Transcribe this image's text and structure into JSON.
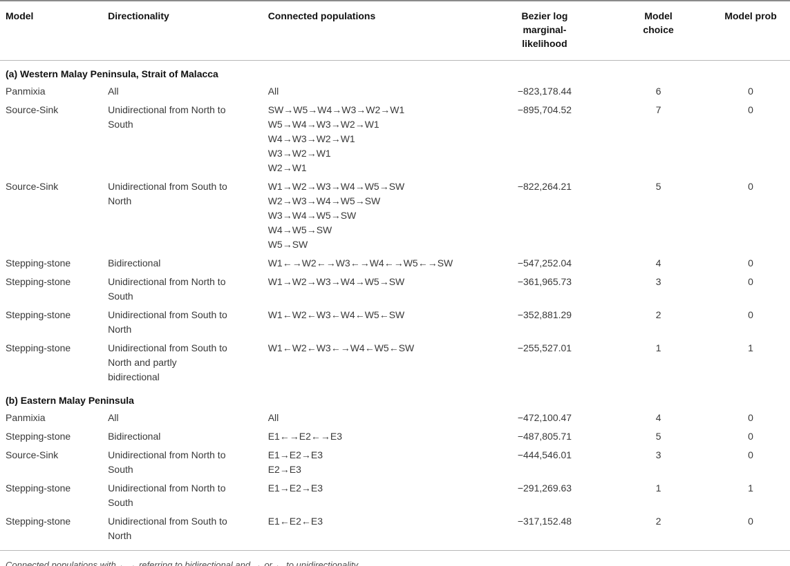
{
  "table": {
    "columns": [
      "Model",
      "Directionality",
      "Connected populations",
      "Bezier log marginal-likelihood",
      "Model choice",
      "Model prob"
    ],
    "sections": [
      {
        "title": "(a) Western Malay Peninsula, Strait of Malacca",
        "rows": [
          {
            "model": "Panmixia",
            "directionality": "All",
            "populations": [
              "All"
            ],
            "likelihood": "−823,178.44",
            "choice": "6",
            "prob": "0"
          },
          {
            "model": "Source-Sink",
            "directionality": "Unidirectional from North to South",
            "populations": [
              "SW→W5→W4→W3→W2→W1",
              "W5→W4→W3→W2→W1",
              "W4→W3→W2→W1",
              "W3→W2→W1",
              "W2→W1"
            ],
            "likelihood": "−895,704.52",
            "choice": "7",
            "prob": "0"
          },
          {
            "model": "Source-Sink",
            "directionality": "Unidirectional from South to North",
            "populations": [
              "W1→W2→W3→W4→W5→SW",
              "W2→W3→W4→W5→SW",
              "W3→W4→W5→SW",
              "W4→W5→SW",
              "W5→SW"
            ],
            "likelihood": "−822,264.21",
            "choice": "5",
            "prob": "0"
          },
          {
            "model": "Stepping-stone",
            "directionality": "Bidirectional",
            "populations": [
              "W1←→W2←→W3←→W4←→W5←→SW"
            ],
            "likelihood": "−547,252.04",
            "choice": "4",
            "prob": "0"
          },
          {
            "model": "Stepping-stone",
            "directionality": "Unidirectional from North to South",
            "populations": [
              "W1→W2→W3→W4→W5→SW"
            ],
            "likelihood": "−361,965.73",
            "choice": "3",
            "prob": "0"
          },
          {
            "model": "Stepping-stone",
            "directionality": "Unidirectional from South to North",
            "populations": [
              "W1←W2←W3←W4←W5←SW"
            ],
            "likelihood": "−352,881.29",
            "choice": "2",
            "prob": "0"
          },
          {
            "model": "Stepping-stone",
            "directionality": "Unidirectional from South to North and partly bidirectional",
            "populations": [
              "W1←W2←W3←→W4←W5←SW"
            ],
            "likelihood": "−255,527.01",
            "choice": "1",
            "prob": "1"
          }
        ]
      },
      {
        "title": "(b) Eastern Malay Peninsula",
        "rows": [
          {
            "model": "Panmixia",
            "directionality": "All",
            "populations": [
              "All"
            ],
            "likelihood": "−472,100.47",
            "choice": "4",
            "prob": "0"
          },
          {
            "model": "Stepping-stone",
            "directionality": "Bidirectional",
            "populations": [
              "E1←→E2←→E3"
            ],
            "likelihood": "−487,805.71",
            "choice": "5",
            "prob": "0"
          },
          {
            "model": "Source-Sink",
            "directionality": "Unidirectional from North to South",
            "populations": [
              "E1→E2→E3",
              "E2→E3"
            ],
            "likelihood": "−444,546.01",
            "choice": "3",
            "prob": "0"
          },
          {
            "model": "Stepping-stone",
            "directionality": "Unidirectional from North to South",
            "populations": [
              "E1→E2→E3"
            ],
            "likelihood": "−291,269.63",
            "choice": "1",
            "prob": "1"
          },
          {
            "model": "Stepping-stone",
            "directionality": "Unidirectional from South to North",
            "populations": [
              "E1←E2←E3"
            ],
            "likelihood": "−317,152.48",
            "choice": "2",
            "prob": "0"
          }
        ]
      }
    ],
    "footnote": "Connected populations with ←→ referring to bidirectional and → or ← to unidirectionality."
  }
}
